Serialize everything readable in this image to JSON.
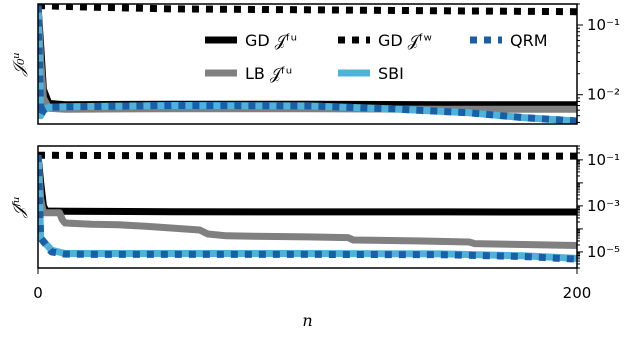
{
  "chart_data": [
    {
      "type": "line",
      "panel": "top",
      "ylabel": "𝒥₀ᵘ",
      "yscale": "log",
      "xlim": [
        0,
        200
      ],
      "ylim": [
        0.0038,
        0.2
      ],
      "ytick_labels": [
        {
          "value": 0.1,
          "label": "10⁻¹"
        },
        {
          "value": 0.01,
          "label": "10⁻²"
        }
      ],
      "legend": {
        "placement": "upper-center",
        "entries": [
          {
            "text": "GD 𝒥ᶠᵘ",
            "series": "gd_u"
          },
          {
            "text": "GD 𝒥ᶠʷ",
            "series": "gd_w"
          },
          {
            "text": "QRM",
            "series": "qrm"
          },
          {
            "text": "LB 𝒥ᶠᵘ",
            "series": "lb_u"
          },
          {
            "text": "SBI",
            "series": "sbi"
          }
        ]
      },
      "series": [
        {
          "key": "gd_w",
          "color": "#000000",
          "style": "dotted",
          "x": [
            0,
            20,
            50,
            100,
            150,
            200
          ],
          "y": [
            0.19,
            0.18,
            0.17,
            0.165,
            0.16,
            0.155
          ]
        },
        {
          "key": "gd_u",
          "color": "#000000",
          "style": "solid",
          "x": [
            0,
            1,
            2,
            4,
            10,
            50,
            100,
            150,
            200
          ],
          "y": [
            0.19,
            0.05,
            0.012,
            0.0075,
            0.0072,
            0.0073,
            0.0073,
            0.0072,
            0.0072
          ]
        },
        {
          "key": "lb_u",
          "color": "#808080",
          "style": "solid",
          "x": [
            0,
            1,
            2,
            4,
            10,
            50,
            100,
            150,
            200
          ],
          "y": [
            0.19,
            0.03,
            0.009,
            0.0064,
            0.0062,
            0.0063,
            0.0063,
            0.0062,
            0.0062
          ]
        },
        {
          "key": "sbi",
          "color": "#4fb3d9",
          "style": "solid",
          "x": [
            0,
            1,
            2,
            4,
            10,
            50,
            100,
            130,
            160,
            180,
            200
          ],
          "y": [
            0.19,
            0.005,
            0.006,
            0.0066,
            0.0067,
            0.007,
            0.0069,
            0.0063,
            0.0055,
            0.0047,
            0.0042
          ]
        },
        {
          "key": "qrm",
          "color": "#1a5ea8",
          "style": "dotted",
          "x": [
            0,
            1,
            2,
            4,
            10,
            50,
            100,
            130,
            160,
            180,
            200
          ],
          "y": [
            0.19,
            0.005,
            0.006,
            0.0066,
            0.0067,
            0.007,
            0.0069,
            0.0063,
            0.0055,
            0.0047,
            0.0042
          ]
        }
      ]
    },
    {
      "type": "line",
      "panel": "bottom",
      "ylabel": "𝒥ᶠᵘ",
      "xlabel": "n",
      "yscale": "log",
      "xlim": [
        0,
        200
      ],
      "ylim": [
        2e-06,
        0.4
      ],
      "xtick_labels": [
        {
          "value": 0,
          "label": "0"
        },
        {
          "value": 200,
          "label": "200"
        }
      ],
      "ytick_labels": [
        {
          "value": 0.1,
          "label": "10⁻¹"
        },
        {
          "value": 0.001,
          "label": "10⁻³"
        },
        {
          "value": 1e-05,
          "label": "10⁻⁵"
        }
      ],
      "series": [
        {
          "key": "gd_w",
          "color": "#000000",
          "style": "dotted",
          "x": [
            0,
            20,
            50,
            100,
            150,
            200
          ],
          "y": [
            0.16,
            0.155,
            0.15,
            0.148,
            0.146,
            0.145
          ]
        },
        {
          "key": "gd_u",
          "color": "#000000",
          "style": "solid",
          "x": [
            0,
            1,
            2,
            3,
            10,
            50,
            100,
            150,
            200
          ],
          "y": [
            0.16,
            0.01,
            0.001,
            0.0006,
            0.00058,
            0.00056,
            0.00055,
            0.00055,
            0.00054
          ]
        },
        {
          "key": "lb_u",
          "color": "#808080",
          "style": "solid",
          "x": [
            0,
            1,
            2,
            8,
            9,
            10,
            20,
            30,
            40,
            60,
            63,
            70,
            80,
            100,
            115,
            117,
            140,
            160,
            162,
            180,
            200
          ],
          "y": [
            0.16,
            0.002,
            0.0005,
            0.0005,
            0.00025,
            0.00018,
            0.00016,
            0.00015,
            0.00013,
            9e-05,
            6e-05,
            5e-05,
            4.8e-05,
            4.5e-05,
            4.2e-05,
            3.3e-05,
            3e-05,
            2.7e-05,
            2.3e-05,
            2.1e-05,
            1.9e-05
          ]
        },
        {
          "key": "sbi",
          "color": "#4fb3d9",
          "style": "solid",
          "x": [
            0,
            1,
            5,
            10,
            20,
            50,
            100,
            150,
            180,
            200
          ],
          "y": [
            0.16,
            4e-05,
            1.2e-05,
            8.5e-06,
            8.5e-06,
            8.5e-06,
            8.5e-06,
            8.2e-06,
            6.8e-06,
            5.2e-06
          ]
        },
        {
          "key": "qrm",
          "color": "#1a5ea8",
          "style": "dotted",
          "x": [
            0,
            1,
            5,
            10,
            20,
            50,
            100,
            150,
            180,
            200
          ],
          "y": [
            0.16,
            4e-05,
            1e-05,
            8e-06,
            7.8e-06,
            7.8e-06,
            7.8e-06,
            7.6e-06,
            6.3e-06,
            4.8e-06
          ]
        }
      ]
    }
  ]
}
